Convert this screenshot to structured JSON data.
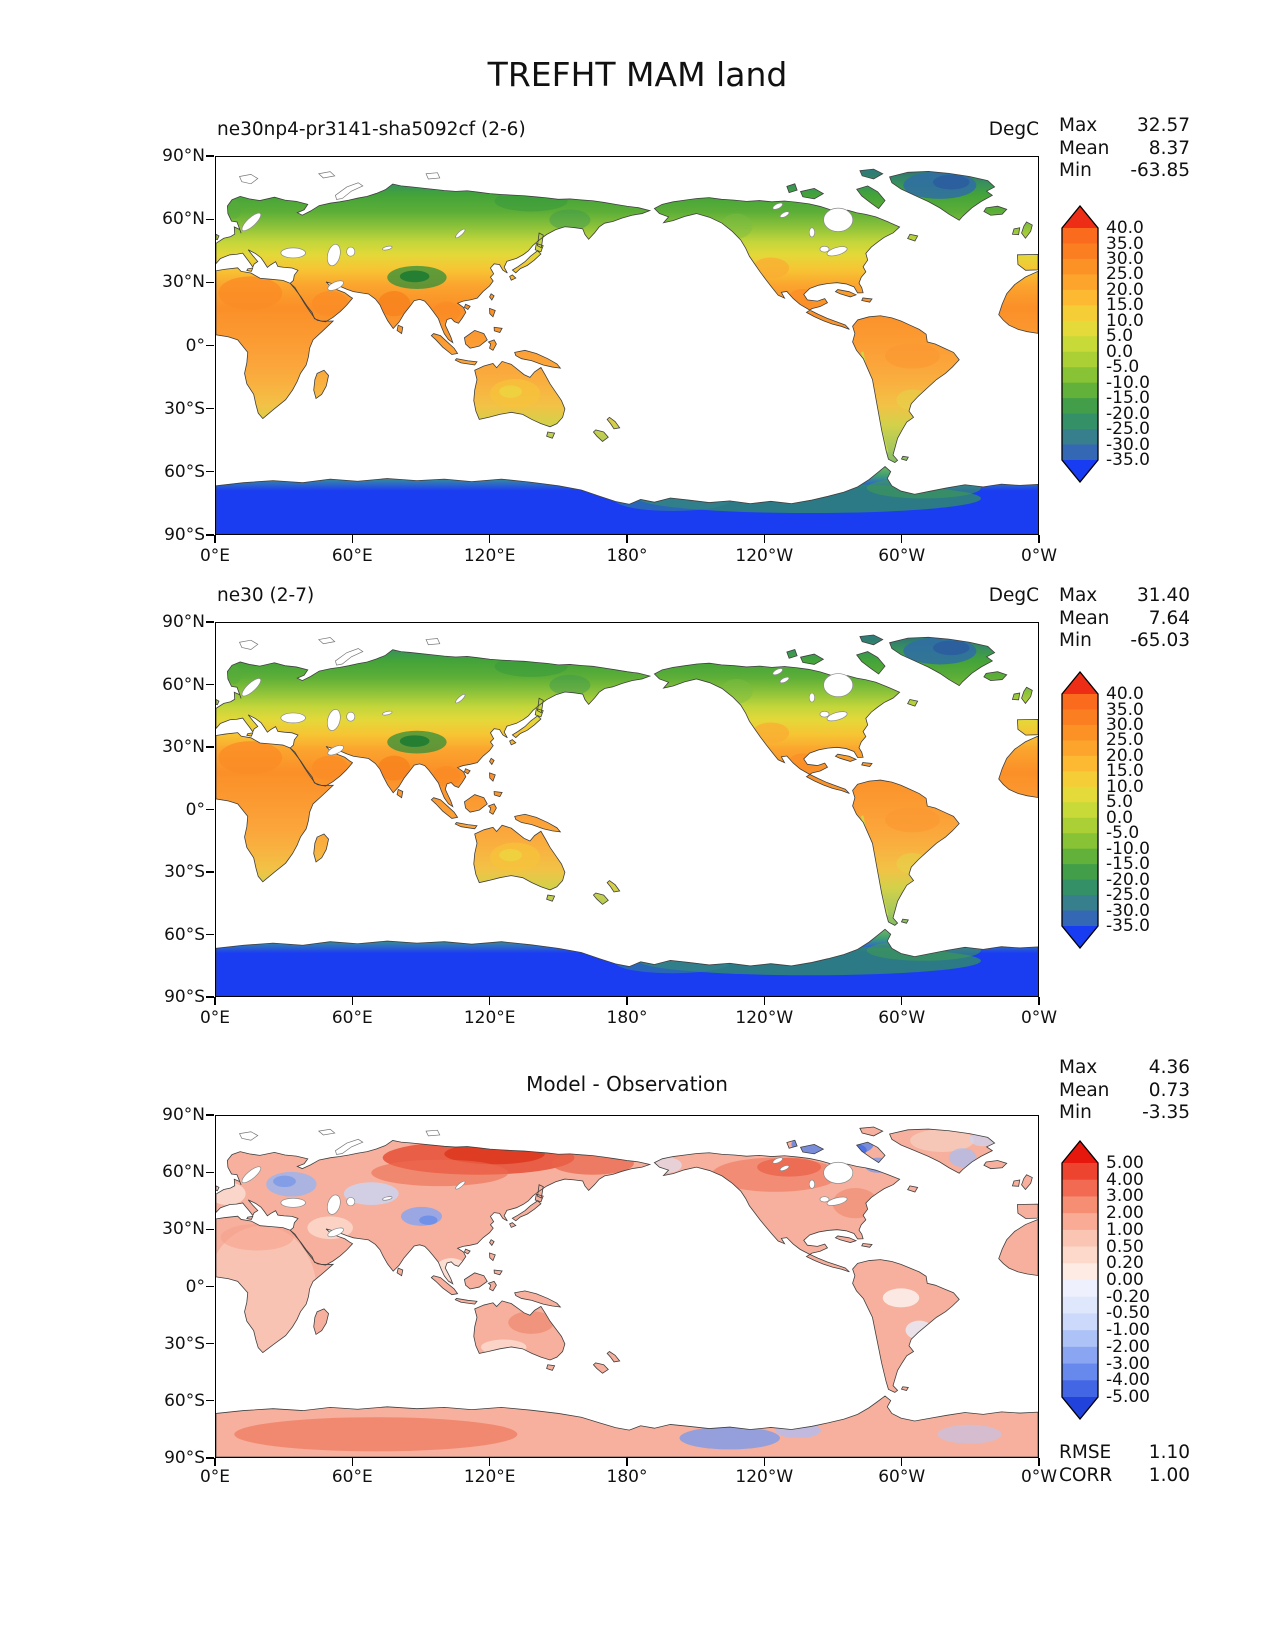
{
  "title": "TREFHT MAM land",
  "axis": {
    "x_ticks": [
      "0°E",
      "60°E",
      "120°E",
      "180°",
      "120°W",
      "60°W",
      "0°W"
    ],
    "y_ticks": [
      "90°N",
      "60°N",
      "30°N",
      "0°",
      "30°S",
      "60°S",
      "90°S"
    ]
  },
  "panels": [
    {
      "title": "ne30np4-pr3141-sha5092cf (2-6)",
      "units": "DegC",
      "stats": [
        {
          "label": "Max",
          "value": "32.57"
        },
        {
          "label": "Mean",
          "value": "8.37"
        },
        {
          "label": "Min",
          "value": "-63.85"
        }
      ],
      "colorbar": {
        "labels": [
          "40.0",
          "35.0",
          "30.0",
          "25.0",
          "20.0",
          "15.0",
          "10.0",
          "5.0",
          "0.0",
          "-5.0",
          "-10.0",
          "-15.0",
          "-20.0",
          "-25.0",
          "-30.0",
          "-35.0"
        ],
        "palette": "temp"
      }
    },
    {
      "title": "ne30 (2-7)",
      "units": "DegC",
      "stats": [
        {
          "label": "Max",
          "value": "31.40"
        },
        {
          "label": "Mean",
          "value": "7.64"
        },
        {
          "label": "Min",
          "value": "-65.03"
        }
      ],
      "colorbar": {
        "labels": [
          "40.0",
          "35.0",
          "30.0",
          "25.0",
          "20.0",
          "15.0",
          "10.0",
          "5.0",
          "0.0",
          "-5.0",
          "-10.0",
          "-15.0",
          "-20.0",
          "-25.0",
          "-30.0",
          "-35.0"
        ],
        "palette": "temp"
      }
    },
    {
      "title": "Model - Observation",
      "units": "",
      "stats": [
        {
          "label": "Max",
          "value": "4.36"
        },
        {
          "label": "Mean",
          "value": "0.73"
        },
        {
          "label": "Min",
          "value": "-3.35"
        }
      ],
      "colorbar": {
        "labels": [
          "5.00",
          "4.00",
          "3.00",
          "2.00",
          "1.00",
          "0.50",
          "0.20",
          "0.00",
          "-0.20",
          "-0.50",
          "-1.00",
          "-2.00",
          "-3.00",
          "-4.00",
          "-5.00"
        ],
        "palette": "diff"
      },
      "extra_stats": [
        {
          "label": "RMSE",
          "value": "1.10"
        },
        {
          "label": "CORR",
          "value": "1.00"
        }
      ]
    }
  ],
  "palettes": {
    "temp": [
      "#ed2d16",
      "#fa6b1e",
      "#fb7f21",
      "#fc9126",
      "#fda42c",
      "#fdb931",
      "#f5cd36",
      "#e4da3a",
      "#c8da38",
      "#aad036",
      "#88c336",
      "#62b13a",
      "#429e48",
      "#349066",
      "#377f8c",
      "#3468b4",
      "#173cf2"
    ],
    "diff": [
      "#e6170d",
      "#ed4430",
      "#f26a52",
      "#f68e74",
      "#f9ab95",
      "#fbc5b3",
      "#fdd9cb",
      "#feece4",
      "#eef1fd",
      "#dfe7fc",
      "#ccd9fa",
      "#adc2f7",
      "#8aa6f2",
      "#6788ec",
      "#4366e4",
      "#2143dc"
    ]
  },
  "colors": {
    "coastline": "#404040",
    "ocean": "#ffffff",
    "frame": "#000000"
  },
  "chart_data": [
    {
      "type": "heatmap",
      "title": "ne30np4-pr3141-sha5092cf (2-6)",
      "variable": "TREFHT",
      "season": "MAM",
      "region": "land",
      "units": "DegC",
      "max": 32.57,
      "mean": 8.37,
      "min": -63.85,
      "levels": [
        40.0,
        35.0,
        30.0,
        25.0,
        20.0,
        15.0,
        10.0,
        5.0,
        0.0,
        -5.0,
        -10.0,
        -15.0,
        -20.0,
        -25.0,
        -30.0,
        -35.0
      ],
      "xlabel_ticks": [
        "0°E",
        "60°E",
        "120°E",
        "180°",
        "120°W",
        "60°W",
        "0°W"
      ],
      "ylabel_ticks": [
        "90°N",
        "60°N",
        "30°N",
        "0°",
        "30°S",
        "60°S",
        "90°S"
      ]
    },
    {
      "type": "heatmap",
      "title": "ne30 (2-7)",
      "variable": "TREFHT",
      "season": "MAM",
      "region": "land",
      "units": "DegC",
      "max": 31.4,
      "mean": 7.64,
      "min": -65.03,
      "levels": [
        40.0,
        35.0,
        30.0,
        25.0,
        20.0,
        15.0,
        10.0,
        5.0,
        0.0,
        -5.0,
        -10.0,
        -15.0,
        -20.0,
        -25.0,
        -30.0,
        -35.0
      ],
      "xlabel_ticks": [
        "0°E",
        "60°E",
        "120°E",
        "180°",
        "120°W",
        "60°W",
        "0°W"
      ],
      "ylabel_ticks": [
        "90°N",
        "60°N",
        "30°N",
        "0°",
        "30°S",
        "60°S",
        "90°S"
      ]
    },
    {
      "type": "heatmap",
      "title": "Model - Observation",
      "variable": "TREFHT",
      "season": "MAM",
      "region": "land",
      "max": 4.36,
      "mean": 0.73,
      "min": -3.35,
      "rmse": 1.1,
      "corr": 1.0,
      "levels": [
        5.0,
        4.0,
        3.0,
        2.0,
        1.0,
        0.5,
        0.2,
        0.0,
        -0.2,
        -0.5,
        -1.0,
        -2.0,
        -3.0,
        -4.0,
        -5.0
      ],
      "xlabel_ticks": [
        "0°E",
        "60°E",
        "120°E",
        "180°",
        "120°W",
        "60°W",
        "0°W"
      ],
      "ylabel_ticks": [
        "90°N",
        "60°N",
        "30°N",
        "0°",
        "30°S",
        "60°S",
        "90°S"
      ]
    }
  ]
}
